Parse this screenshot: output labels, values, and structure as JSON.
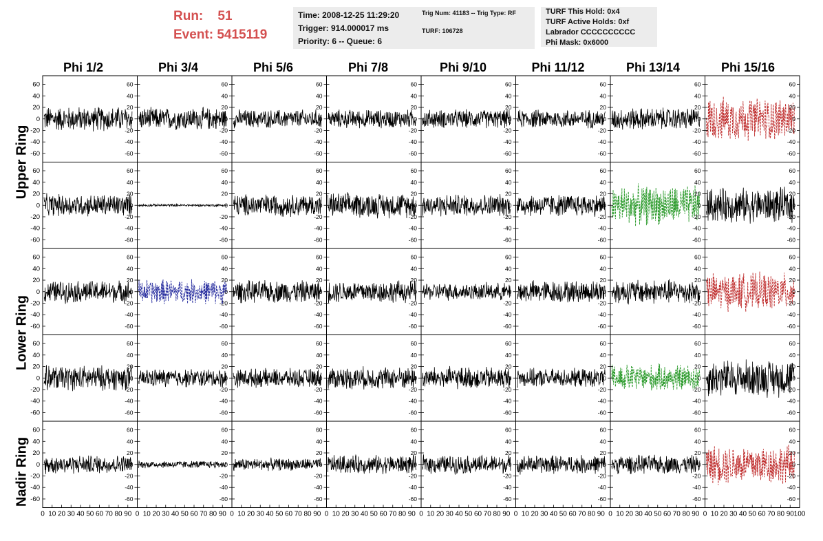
{
  "header": {
    "run_label": "Run:",
    "run_value": "51",
    "event_label": "Event:",
    "event_value": "5415119"
  },
  "info_box_1": {
    "time": "Time: 2008-12-25 11:29:20",
    "trigger": "Trigger: 914.000017 ms",
    "priority": "Priority: 6 -- Queue: 6"
  },
  "info_box_2": {
    "trig": "Trig Num: 41183 -- Trig Type: RF",
    "turf": "TURF: 106728"
  },
  "info_box_3": {
    "hold": "TURF This Hold: 0x4",
    "active": "TURF Active Holds: 0xf",
    "labrador": "Labrador CCCCCCCCCC",
    "mask": "Phi Mask: 0x6000"
  },
  "columns": [
    "Phi 1/2",
    "Phi 3/4",
    "Phi 5/6",
    "Phi 7/8",
    "Phi 9/10",
    "Phi 11/12",
    "Phi 13/14",
    "Phi 15/16"
  ],
  "row_labels": [
    "Upper Ring",
    "Lower Ring",
    "Nadir Ring"
  ],
  "colors": {
    "black": "#000000",
    "red": "#c03030",
    "green": "#2a9a2a",
    "blue": "#2a30a0",
    "run_text": "#d45050",
    "box_bg": "#ececec"
  },
  "chart_data": {
    "type": "line",
    "xlim": [
      0,
      100
    ],
    "ylim": [
      -75,
      75
    ],
    "y_ticks": [
      "60",
      "40",
      "20",
      "0",
      "-20",
      "-40",
      "-60"
    ],
    "x_tick_labels": [
      "0",
      "10",
      "20",
      "30",
      "40",
      "50",
      "60",
      "70",
      "80",
      "90",
      "100"
    ],
    "panel_rows": 5,
    "panel_cols": 8,
    "amplitude_grid": [
      [
        20,
        18,
        15,
        15,
        15,
        15,
        18,
        35
      ],
      [
        18,
        2,
        18,
        20,
        18,
        18,
        32,
        28
      ],
      [
        18,
        20,
        18,
        18,
        14,
        18,
        20,
        30
      ],
      [
        20,
        15,
        15,
        18,
        18,
        15,
        22,
        30
      ],
      [
        15,
        6,
        10,
        15,
        15,
        15,
        15,
        32
      ]
    ],
    "color_grid": [
      [
        "black",
        "black",
        "black",
        "black",
        "black",
        "black",
        "black",
        "red"
      ],
      [
        "black",
        "black",
        "black",
        "black",
        "black",
        "black",
        "green",
        "black"
      ],
      [
        "black",
        "blue",
        "black",
        "black",
        "black",
        "black",
        "black",
        "red"
      ],
      [
        "black",
        "black",
        "black",
        "black",
        "black",
        "black",
        "green",
        "black"
      ],
      [
        "black",
        "black",
        "black",
        "black",
        "black",
        "black",
        "black",
        "red"
      ]
    ]
  }
}
